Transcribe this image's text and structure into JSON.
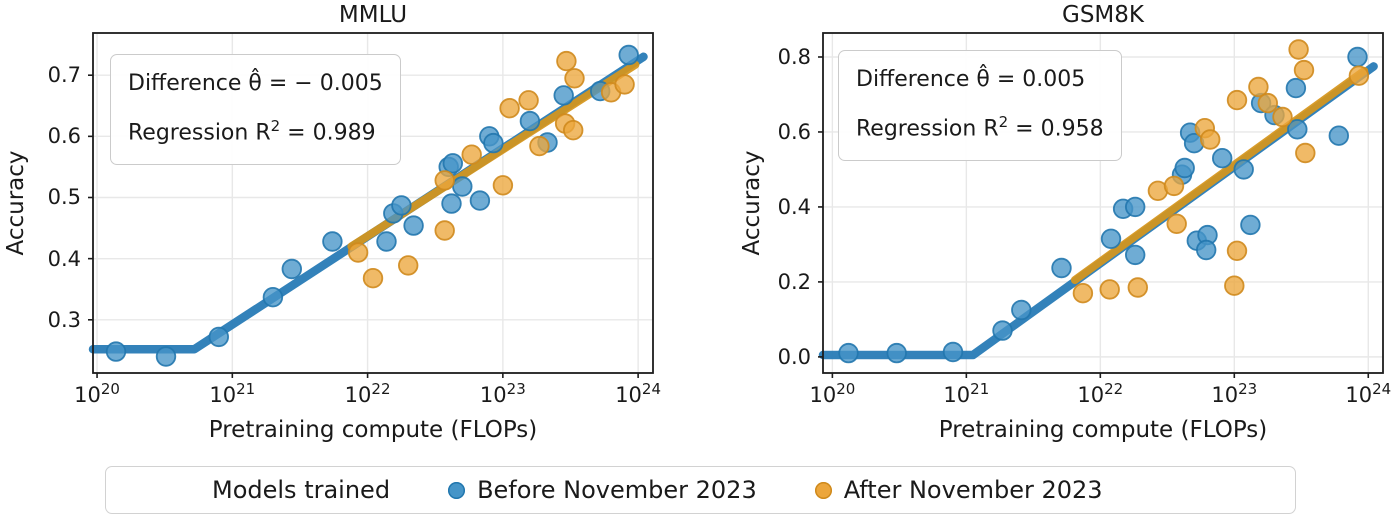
{
  "colors": {
    "before_fill": "#4695c8",
    "before_edge": "#2277ae",
    "after_fill": "#eca63c",
    "after_edge": "#cf8a1d",
    "before_line": "#2379b5",
    "after_line": "#d6961c",
    "grid": "#e8e8e8",
    "axis": "#1c1c1c"
  },
  "legend": {
    "title": "Models trained",
    "items": [
      {
        "label": "Before November 2023",
        "color_key": "before"
      },
      {
        "label": "After November 2023",
        "color_key": "after"
      }
    ]
  },
  "chart_data": [
    {
      "type": "scatter",
      "title": "MMLU",
      "xlabel": "Pretraining compute (FLOPs)",
      "ylabel": "Accuracy",
      "x_scale": "log10",
      "xlim": [
        19.97,
        24.11
      ],
      "ylim": [
        0.213,
        0.769
      ],
      "xticks": [
        {
          "log": 20,
          "label": "10^20"
        },
        {
          "log": 21,
          "label": "10^21"
        },
        {
          "log": 22,
          "label": "10^22"
        },
        {
          "log": 23,
          "label": "10^23"
        },
        {
          "log": 24,
          "label": "10^24"
        }
      ],
      "yticks": [
        0.3,
        0.4,
        0.5,
        0.6,
        0.7
      ],
      "annotation": {
        "line1": "Difference θ̂ = − 0.005",
        "line2_pre": "Regression R",
        "line2_sup": "2",
        "line2_post": " = 0.989"
      },
      "series": [
        {
          "name": "Before November 2023",
          "color_key": "before",
          "points": [
            [
              20.14,
              0.248
            ],
            [
              20.51,
              0.24
            ],
            [
              20.9,
              0.272
            ],
            [
              21.3,
              0.337
            ],
            [
              21.44,
              0.383
            ],
            [
              21.74,
              0.428
            ],
            [
              22.14,
              0.428
            ],
            [
              22.19,
              0.474
            ],
            [
              22.25,
              0.487
            ],
            [
              22.34,
              0.454
            ],
            [
              22.6,
              0.55
            ],
            [
              22.63,
              0.556
            ],
            [
              22.62,
              0.49
            ],
            [
              22.7,
              0.518
            ],
            [
              22.83,
              0.495
            ],
            [
              22.9,
              0.6
            ],
            [
              22.93,
              0.589
            ],
            [
              23.2,
              0.625
            ],
            [
              23.33,
              0.59
            ],
            [
              23.45,
              0.667
            ],
            [
              23.72,
              0.674
            ],
            [
              23.93,
              0.733
            ]
          ]
        },
        {
          "name": "After November 2023",
          "color_key": "after",
          "points": [
            [
              21.93,
              0.41
            ],
            [
              22.04,
              0.368
            ],
            [
              22.3,
              0.389
            ],
            [
              22.57,
              0.446
            ],
            [
              22.57,
              0.528
            ],
            [
              22.77,
              0.57
            ],
            [
              23.0,
              0.52
            ],
            [
              23.05,
              0.646
            ],
            [
              23.19,
              0.659
            ],
            [
              23.27,
              0.584
            ],
            [
              23.46,
              0.621
            ],
            [
              23.52,
              0.61
            ],
            [
              23.47,
              0.723
            ],
            [
              23.53,
              0.695
            ],
            [
              23.8,
              0.672
            ],
            [
              23.9,
              0.685
            ]
          ]
        }
      ],
      "trend_lines": [
        {
          "color_key": "before",
          "points": [
            [
              19.97,
              0.252
            ],
            [
              20.72,
              0.252
            ],
            [
              24.04,
              0.73
            ]
          ]
        },
        {
          "color_key": "after",
          "points": [
            [
              21.88,
              0.42
            ],
            [
              23.98,
              0.717
            ]
          ]
        }
      ]
    },
    {
      "type": "scatter",
      "title": "GSM8K",
      "xlabel": "Pretraining compute (FLOPs)",
      "ylabel": "Accuracy",
      "x_scale": "log10",
      "xlim": [
        19.93,
        24.11
      ],
      "ylim": [
        -0.043,
        0.864
      ],
      "xticks": [
        {
          "log": 20,
          "label": "10^20"
        },
        {
          "log": 21,
          "label": "10^21"
        },
        {
          "log": 22,
          "label": "10^22"
        },
        {
          "log": 23,
          "label": "10^23"
        },
        {
          "log": 24,
          "label": "10^24"
        }
      ],
      "yticks": [
        0.0,
        0.2,
        0.4,
        0.6,
        0.8
      ],
      "annotation": {
        "line1": "Difference θ̂ = 0.005",
        "line2_pre": "Regression R",
        "line2_sup": "2",
        "line2_post": " = 0.958"
      },
      "series": [
        {
          "name": "Before November 2023",
          "color_key": "before",
          "points": [
            [
              20.12,
              0.01
            ],
            [
              20.48,
              0.01
            ],
            [
              20.9,
              0.013
            ],
            [
              21.27,
              0.07
            ],
            [
              21.41,
              0.125
            ],
            [
              21.71,
              0.237
            ],
            [
              22.08,
              0.315
            ],
            [
              22.17,
              0.395
            ],
            [
              22.26,
              0.4
            ],
            [
              22.26,
              0.272
            ],
            [
              22.61,
              0.486
            ],
            [
              22.63,
              0.504
            ],
            [
              22.67,
              0.598
            ],
            [
              22.7,
              0.57
            ],
            [
              22.72,
              0.31
            ],
            [
              22.8,
              0.325
            ],
            [
              22.79,
              0.285
            ],
            [
              22.91,
              0.53
            ],
            [
              23.07,
              0.5
            ],
            [
              23.12,
              0.352
            ],
            [
              23.2,
              0.677
            ],
            [
              23.3,
              0.645
            ],
            [
              23.46,
              0.717
            ],
            [
              23.47,
              0.607
            ],
            [
              23.78,
              0.59
            ],
            [
              23.92,
              0.8
            ]
          ]
        },
        {
          "name": "After November 2023",
          "color_key": "after",
          "points": [
            [
              21.87,
              0.17
            ],
            [
              22.07,
              0.18
            ],
            [
              22.28,
              0.185
            ],
            [
              22.43,
              0.443
            ],
            [
              22.55,
              0.456
            ],
            [
              22.57,
              0.355
            ],
            [
              22.78,
              0.61
            ],
            [
              22.82,
              0.58
            ],
            [
              23.0,
              0.19
            ],
            [
              23.02,
              0.283
            ],
            [
              23.02,
              0.685
            ],
            [
              23.18,
              0.72
            ],
            [
              23.25,
              0.677
            ],
            [
              23.36,
              0.64
            ],
            [
              23.48,
              0.82
            ],
            [
              23.52,
              0.765
            ],
            [
              23.53,
              0.544
            ],
            [
              23.93,
              0.75
            ]
          ]
        }
      ],
      "trend_lines": [
        {
          "color_key": "before",
          "points": [
            [
              19.93,
              0.005
            ],
            [
              21.05,
              0.005
            ],
            [
              24.04,
              0.775
            ]
          ]
        },
        {
          "color_key": "after",
          "points": [
            [
              21.81,
              0.205
            ],
            [
              23.97,
              0.763
            ]
          ]
        }
      ]
    }
  ]
}
